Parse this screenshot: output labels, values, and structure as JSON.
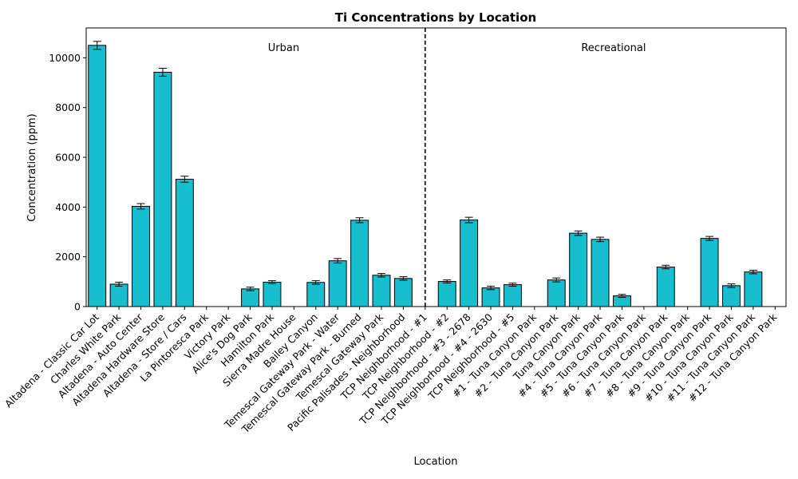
{
  "chart_data": {
    "type": "bar",
    "title": "Ti Concentrations by Location",
    "xlabel": "Location",
    "ylabel": "Concentration (ppm)",
    "ylim": [
      0,
      11200
    ],
    "yticks": [
      0,
      2000,
      4000,
      6000,
      8000,
      10000
    ],
    "bar_color": "#17becf",
    "categories": [
      "Altadena - Classic Car Lot",
      "Charles White Park",
      "Altadena - Auto Center",
      "Altadena Hardware Store",
      "Altadena - Store / Cars",
      "La Pintoresca Park",
      "Victory Park",
      "Alice's Dog Park",
      "Hamilton Park",
      "Sierra Madre House",
      "Bailey Canyon",
      "Temescal Gateway Park - Water",
      "Temescal Gateway Park - Burned",
      "Temescal Gateway Park",
      "Pacific Palisades - Neighborhood",
      "TCP Neighborhood - #1",
      "TCP Neighborhood - #2",
      "TCP Neighborhood - #3 - 2678",
      "TCP Neighborhood - #4 - 2630",
      "TCP Neighborhood - #5",
      "#1 - Tuna Canyon Park",
      "#2 - Tuna Canyon Park",
      "Tuna Canyon Park",
      "#4 - Tuna Canyon Park",
      "#5 - Tuna Canyon Park",
      "#6 - Tuna Canyon Park",
      "#7 - Tuna Canyon Park",
      "#8 - Tuna Canyon Park",
      "#9 - Tuna Canyon Park",
      "#10 - Tuna Canyon Park",
      "#11 - Tuna Canyon Park",
      "#12 - Tuna Canyon Park"
    ],
    "values": [
      10500,
      900,
      4030,
      9420,
      5120,
      null,
      null,
      710,
      980,
      null,
      970,
      1840,
      3470,
      1260,
      1130,
      null,
      1010,
      3480,
      750,
      880,
      null,
      1070,
      2950,
      2700,
      430,
      null,
      1590,
      null,
      2740,
      840,
      1390,
      null
    ],
    "errors": [
      160,
      80,
      110,
      160,
      120,
      null,
      null,
      70,
      60,
      null,
      70,
      90,
      100,
      70,
      70,
      null,
      60,
      110,
      70,
      60,
      null,
      80,
      90,
      90,
      60,
      null,
      70,
      null,
      80,
      70,
      70,
      null
    ],
    "divider_after_index": 15,
    "regions": [
      {
        "label": "Urban"
      },
      {
        "label": "Recreational"
      }
    ]
  }
}
